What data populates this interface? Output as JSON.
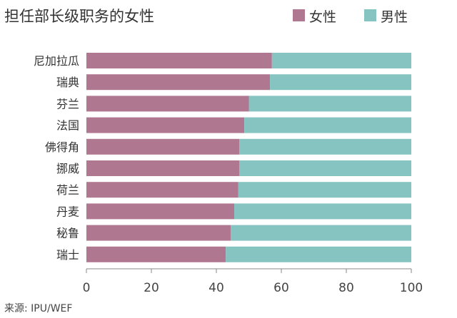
{
  "chart_data": {
    "type": "bar",
    "orientation": "horizontal",
    "stacked": true,
    "title": "担任部长级职务的女性",
    "categories": [
      "尼加拉瓜",
      "瑞典",
      "芬兰",
      "法国",
      "佛得角",
      "挪威",
      "荷兰",
      "丹麦",
      "秘鲁",
      "瑞士"
    ],
    "series": [
      {
        "name": "女性",
        "color": "#b07890",
        "values": [
          57.1,
          56.5,
          50.0,
          48.6,
          47.1,
          47.1,
          46.7,
          45.5,
          44.4,
          42.9
        ]
      },
      {
        "name": "男性",
        "color": "#86c4c2",
        "values": [
          42.9,
          43.5,
          50.0,
          51.4,
          52.9,
          52.9,
          53.3,
          54.5,
          55.6,
          57.1
        ]
      }
    ],
    "xlim": [
      0,
      100
    ],
    "xticks": [
      "0",
      "20",
      "40",
      "60",
      "80",
      "100"
    ],
    "legend_position": "top-right",
    "grid": false,
    "source": "来源: IPU/WEF"
  }
}
